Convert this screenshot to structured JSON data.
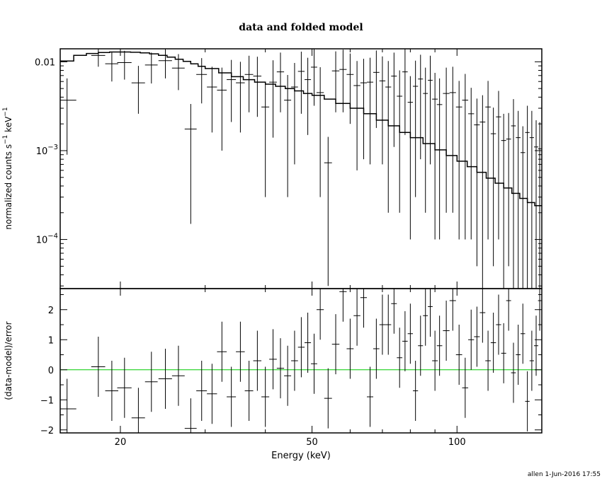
{
  "title": "data and folded model",
  "footer": "allen   1-Jun-2016 17:55",
  "colors": {
    "data": "#000000",
    "zero_line": "#00cc00",
    "frame": "#000000"
  },
  "chart_data": [
    {
      "type": "line",
      "panel": "top",
      "xlabel": "Energy (keV)",
      "ylabel": "normalized counts s^-1 keV^-1",
      "x_scale": "log",
      "y_scale": "log",
      "xlim": [
        15,
        150
      ],
      "ylim": [
        2.8e-05,
        0.014
      ],
      "y_ticks": [
        {
          "value": 0.01,
          "label": "0.01"
        },
        {
          "value": 0.001,
          "label": "10",
          "sup": "-3"
        },
        {
          "value": 0.0001,
          "label": "10",
          "sup": "-4"
        }
      ],
      "series": [
        {
          "kind": "model",
          "x": [
            15,
            16,
            17,
            18,
            19,
            20,
            21,
            22,
            23,
            24,
            25,
            26,
            27,
            28,
            29,
            30,
            32,
            34,
            36,
            38,
            40,
            42,
            44,
            46,
            48,
            50,
            53,
            56,
            60,
            64,
            68,
            72,
            76,
            80,
            85,
            90,
            95,
            100,
            105,
            110,
            115,
            120,
            125,
            130,
            135,
            140,
            145,
            150
          ],
          "y": [
            0.0102,
            0.0118,
            0.0124,
            0.0127,
            0.0129,
            0.0129,
            0.0128,
            0.0126,
            0.0123,
            0.0118,
            0.0113,
            0.0107,
            0.0101,
            0.0095,
            0.0089,
            0.0084,
            0.0075,
            0.0068,
            0.0063,
            0.0059,
            0.0056,
            0.0053,
            0.005,
            0.0047,
            0.0044,
            0.0042,
            0.0038,
            0.0034,
            0.003,
            0.0026,
            0.0022,
            0.0019,
            0.0016,
            0.0014,
            0.0012,
            0.00102,
            0.00088,
            0.00076,
            0.00066,
            0.00057,
            0.00049,
            0.00043,
            0.00038,
            0.00033,
            0.00029,
            0.00026,
            0.00024,
            0.00023
          ]
        },
        {
          "kind": "data",
          "x": [
            15.5,
            18.0,
            19.2,
            20.4,
            21.8,
            23.2,
            24.8,
            26.4,
            28.0,
            29.5,
            31.0,
            32.5,
            34.0,
            35.5,
            37.0,
            38.5,
            40.0,
            41.5,
            43.0,
            44.5,
            46.0,
            47.5,
            49.0,
            50.5,
            52.0,
            54.0,
            56.0,
            58.0,
            60.0,
            62.0,
            64.0,
            66.0,
            68.0,
            70.0,
            72.0,
            74.0,
            76.0,
            78.0,
            80.0,
            82.0,
            84.0,
            86.0,
            88.0,
            90.0,
            92.0,
            95.0,
            98.0,
            101.0,
            104.0,
            107.0,
            110.0,
            113.0,
            116.0,
            119.0,
            122.0,
            125.0,
            128.0,
            131.0,
            134.0,
            137.0,
            140.0,
            143.0,
            146.0,
            148.5
          ],
          "xerr": [
            0.7,
            0.6,
            0.6,
            0.7,
            0.7,
            0.7,
            0.8,
            0.8,
            0.8,
            0.75,
            0.75,
            0.75,
            0.75,
            0.75,
            0.75,
            0.75,
            0.75,
            0.75,
            0.75,
            0.75,
            0.75,
            0.75,
            0.75,
            0.75,
            0.9,
            1.0,
            1.0,
            1.0,
            1.0,
            1.0,
            1.0,
            1.0,
            1.0,
            1.0,
            1.0,
            1.0,
            1.0,
            1.0,
            1.0,
            1.0,
            1.0,
            1.0,
            1.0,
            1.2,
            1.2,
            1.5,
            1.5,
            1.5,
            1.5,
            1.5,
            1.5,
            1.5,
            1.5,
            1.5,
            1.5,
            1.5,
            1.5,
            1.5,
            1.5,
            1.5,
            1.5,
            1.5,
            1.5,
            1.2
          ],
          "y": [
            0.0037,
            0.0118,
            0.0095,
            0.0098,
            0.0058,
            0.0092,
            0.0103,
            0.0085,
            0.00175,
            0.0072,
            0.0052,
            0.0048,
            0.0063,
            0.0058,
            0.0072,
            0.0069,
            0.0031,
            0.0059,
            0.0077,
            0.0037,
            0.0052,
            0.0078,
            0.0063,
            0.0087,
            0.0045,
            0.00073,
            0.0079,
            0.0082,
            0.0072,
            0.0054,
            0.0058,
            0.0059,
            0.0076,
            0.0061,
            0.0052,
            0.0069,
            0.0041,
            0.0077,
            0.0035,
            0.0053,
            0.0064,
            0.0044,
            0.0062,
            0.0038,
            0.0033,
            0.0044,
            0.0045,
            0.0031,
            0.0037,
            0.0026,
            0.00195,
            0.0021,
            0.0031,
            0.00155,
            0.0024,
            0.0013,
            0.00135,
            0.0019,
            0.0014,
            0.00095,
            0.0016,
            0.0014,
            0.0011,
            0.00105
          ],
          "yerr": [
            0.0028,
            0.003,
            0.0035,
            0.0035,
            0.0032,
            0.0035,
            0.0038,
            0.0037,
            0.0016,
            0.0038,
            0.0036,
            0.0038,
            0.0042,
            0.0042,
            0.0045,
            0.0045,
            0.0028,
            0.0045,
            0.005,
            0.0034,
            0.0045,
            0.0052,
            0.0048,
            0.0055,
            0.0042,
            0.0007,
            0.0052,
            0.0055,
            0.0052,
            0.0048,
            0.005,
            0.0052,
            0.0058,
            0.0054,
            0.005,
            0.0058,
            0.0039,
            0.0062,
            0.0034,
            0.005,
            0.0056,
            0.0042,
            0.0055,
            0.0037,
            0.0032,
            0.0042,
            0.0043,
            0.003,
            0.0036,
            0.0025,
            0.0019,
            0.0021,
            0.003,
            0.0015,
            0.0023,
            0.0013,
            0.0013,
            0.0019,
            0.0014,
            0.00093,
            0.0016,
            0.0014,
            0.0011,
            0.00104
          ]
        }
      ]
    },
    {
      "type": "scatter",
      "panel": "bottom",
      "xlabel": "Energy (keV)",
      "ylabel": "(data-model)/error",
      "x_scale": "log",
      "xlim": [
        15,
        150
      ],
      "ylim": [
        -2.1,
        2.7
      ],
      "x_ticks": [
        20,
        50,
        100
      ],
      "y_ticks": [
        -2,
        -1,
        0,
        1,
        2
      ],
      "zero_line": 0,
      "series": [
        {
          "kind": "residuals",
          "x": [
            15.5,
            18.0,
            19.2,
            20.4,
            21.8,
            23.2,
            24.8,
            26.4,
            28.0,
            29.5,
            31.0,
            32.5,
            34.0,
            35.5,
            37.0,
            38.5,
            40.0,
            41.5,
            43.0,
            44.5,
            46.0,
            47.5,
            49.0,
            50.5,
            52.0,
            54.0,
            56.0,
            58.0,
            60.0,
            62.0,
            64.0,
            66.0,
            68.0,
            70.0,
            72.0,
            74.0,
            76.0,
            78.0,
            80.0,
            82.0,
            84.0,
            86.0,
            88.0,
            90.0,
            92.0,
            95.0,
            98.0,
            101.0,
            104.0,
            107.0,
            110.0,
            113.0,
            116.0,
            119.0,
            122.0,
            125.0,
            128.0,
            131.0,
            134.0,
            137.0,
            140.0,
            143.0,
            146.0,
            148.5
          ],
          "xerr": [
            0.7,
            0.6,
            0.6,
            0.7,
            0.7,
            0.7,
            0.8,
            0.8,
            0.8,
            0.75,
            0.75,
            0.75,
            0.75,
            0.75,
            0.75,
            0.75,
            0.75,
            0.75,
            0.75,
            0.75,
            0.75,
            0.75,
            0.75,
            0.75,
            0.9,
            1.0,
            1.0,
            1.0,
            1.0,
            1.0,
            1.0,
            1.0,
            1.0,
            1.0,
            1.0,
            1.0,
            1.0,
            1.0,
            1.0,
            1.0,
            1.0,
            1.0,
            1.0,
            1.2,
            1.2,
            1.5,
            1.5,
            1.5,
            1.5,
            1.5,
            1.5,
            1.5,
            1.5,
            1.5,
            1.5,
            1.5,
            1.5,
            1.5,
            1.5,
            1.5,
            1.5,
            1.5,
            1.5,
            1.2
          ],
          "y": [
            -1.3,
            0.1,
            -0.7,
            -0.6,
            -1.6,
            -0.4,
            -0.3,
            -0.2,
            -1.95,
            -0.7,
            -0.8,
            0.6,
            -0.9,
            0.6,
            -0.7,
            0.3,
            -0.9,
            0.35,
            0.05,
            -0.2,
            0.3,
            0.75,
            0.9,
            0.2,
            2.0,
            -0.95,
            0.85,
            2.6,
            0.7,
            1.8,
            2.4,
            -0.9,
            0.7,
            1.5,
            1.5,
            2.2,
            0.4,
            0.95,
            1.2,
            -0.7,
            0.8,
            1.8,
            2.1,
            0.3,
            0.8,
            1.3,
            2.3,
            0.5,
            -0.6,
            1.0,
            1.1,
            1.9,
            0.3,
            0.9,
            1.5,
            0.55,
            2.3,
            -0.1,
            0.5,
            1.2,
            -1.05,
            0.3,
            0.8,
            2.3
          ],
          "yerr": 1
        }
      ]
    }
  ]
}
